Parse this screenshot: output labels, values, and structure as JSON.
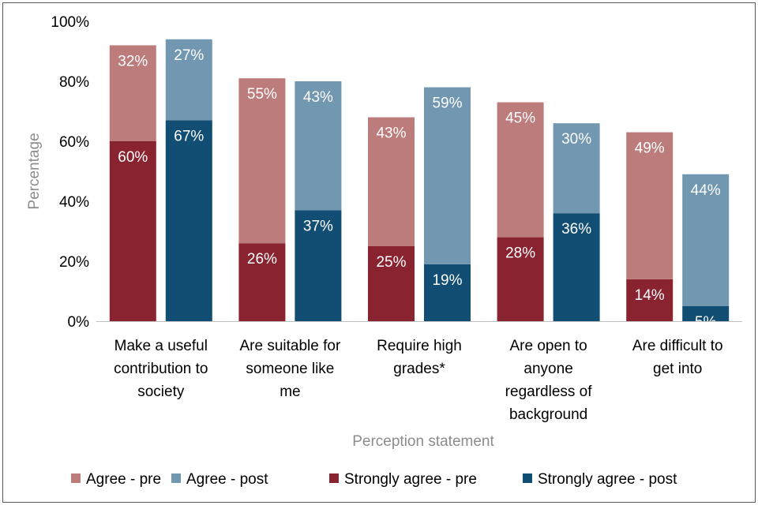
{
  "chart_data": {
    "type": "bar",
    "stacked": true,
    "title": "",
    "xlabel": "Perception statement",
    "ylabel": "Percentage",
    "ylim": [
      0,
      100
    ],
    "yticks": [
      "0%",
      "20%",
      "40%",
      "60%",
      "80%",
      "100%"
    ],
    "ytick_values": [
      0,
      20,
      40,
      60,
      80,
      100
    ],
    "categories": [
      [
        "Make a useful",
        "contribution to",
        "society"
      ],
      [
        "Are suitable for",
        "someone like",
        "me"
      ],
      [
        "Require high",
        "grades*"
      ],
      [
        "Are open to",
        "anyone",
        "regardless of",
        "background"
      ],
      [
        "Are difficult to",
        "get into"
      ]
    ],
    "groups": [
      {
        "name": "pre",
        "stack": [
          {
            "series": "Strongly agree - pre",
            "values": [
              60,
              26,
              25,
              28,
              14
            ],
            "labels": [
              "60%",
              "26%",
              "25%",
              "28%",
              "14%"
            ]
          },
          {
            "series": "Agree - pre",
            "values": [
              32,
              55,
              43,
              45,
              49
            ],
            "labels": [
              "32%",
              "55%",
              "43%",
              "45%",
              "49%"
            ]
          }
        ]
      },
      {
        "name": "post",
        "stack": [
          {
            "series": "Strongly agree - post",
            "values": [
              67,
              37,
              19,
              36,
              5
            ],
            "labels": [
              "67%",
              "37%",
              "19%",
              "36%",
              "5%"
            ]
          },
          {
            "series": "Agree - post",
            "values": [
              27,
              43,
              59,
              30,
              44
            ],
            "labels": [
              "27%",
              "43%",
              "59%",
              "30%",
              "44%"
            ]
          }
        ]
      }
    ],
    "legend": {
      "position": "bottom",
      "items": [
        "Agree - pre",
        "Agree - post",
        "Strongly agree - pre",
        "Strongly agree - post"
      ]
    },
    "colors": {
      "Agree - pre": "#bc7c7c",
      "Agree - post": "#7297b1",
      "Strongly agree - pre": "#8a2330",
      "Strongly agree - post": "#124e73",
      "axis_title": "#8c8c8c",
      "text": "#000000",
      "label_text": "#ffffff",
      "baseline": "#bfbfbf"
    }
  }
}
